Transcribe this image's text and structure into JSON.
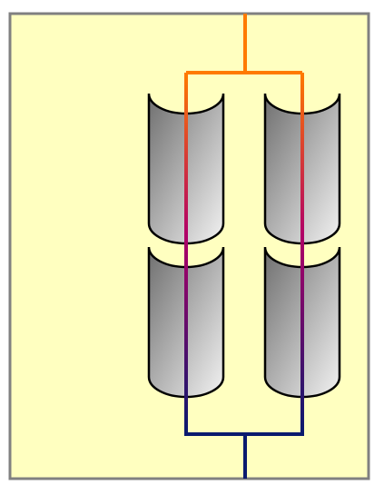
{
  "colors": {
    "background": "#ffffff",
    "panel_fill": "#ffffc0",
    "panel_border": "#808080",
    "wire_top": "#ff7a00",
    "wire_mid": "#b00068",
    "wire_bottom": "#0a1a6e",
    "electrode_dark": "#6f6f6f",
    "electrode_light": "#f2f2f2",
    "outline": "#000000"
  },
  "diagram": {
    "electrode_count": 4,
    "electrode_icon": "half-cylinder-electrode",
    "wire_icon": "parallel-connection"
  }
}
